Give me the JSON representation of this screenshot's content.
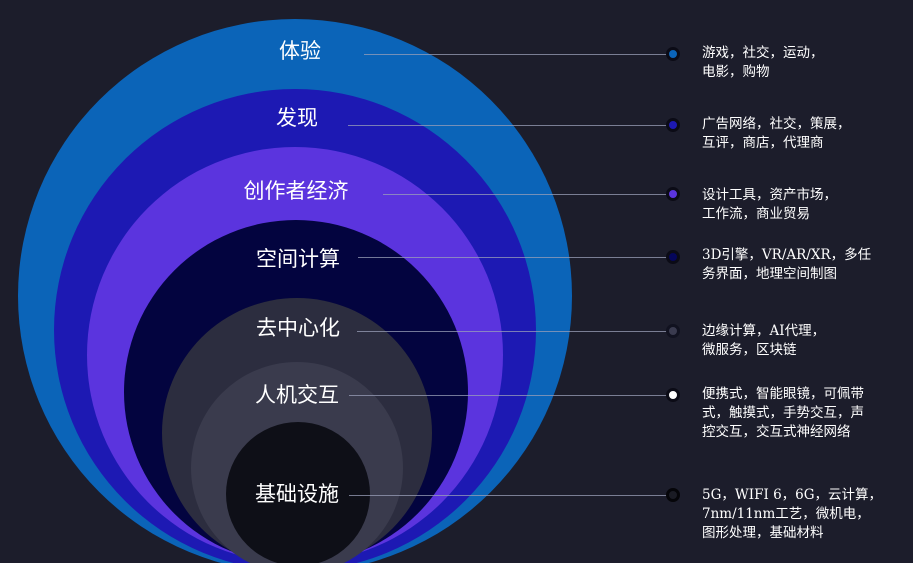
{
  "layers": [
    {
      "name": "体验",
      "desc": "游戏，社交，运动，\n电影，购物",
      "color": "#0b64b8",
      "dot_color": "#0b64b8"
    },
    {
      "name": "发现",
      "desc": "广告网络，社交，策展，\n互评，商店，代理商",
      "color": "#1d19b3",
      "dot_color": "#1d19b3"
    },
    {
      "name": "创作者经济",
      "desc": "设计工具，资产市场，\n工作流，商业贸易",
      "color": "#5b34de",
      "dot_color": "#5b34de"
    },
    {
      "name": "空间计算",
      "desc": "3D引擎，VR/AR/XR，多任\n务界面，地理空间制图",
      "color": "#03043f",
      "dot_color": "#05065a"
    },
    {
      "name": "去中心化",
      "desc": "边缘计算，AI代理，\n微服务，区块链",
      "color": "#2c2d3f",
      "dot_color": "#3a3b4f"
    },
    {
      "name": "人机交互",
      "desc": "便携式，智能眼镜，可佩带\n式，触摸式，手势交互，声\n控交互，交互式神经网络",
      "color": "#3a3b4d",
      "dot_color": "#ffffff"
    },
    {
      "name": "基础设施",
      "desc": "5G，WIFI 6，6G，云计算，\n7nm/11nm工艺，微机电，\n图形处理，基础材料",
      "color": "#0e0f17",
      "dot_color": "#1a1b24"
    }
  ]
}
